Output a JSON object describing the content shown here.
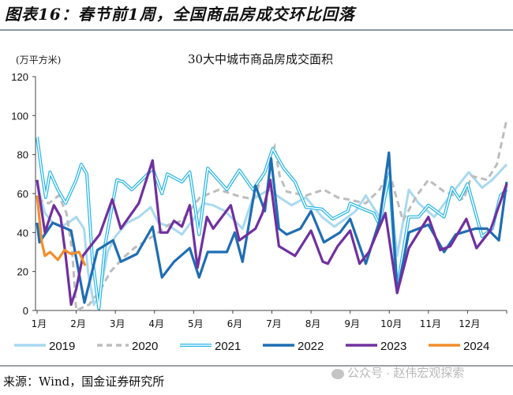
{
  "header": {
    "title": "图表16：春节前1周，全国商品房成交环比回落"
  },
  "footer": {
    "source": "来源：Wind，国金证券研究所",
    "watermark": "公众号 · 赵伟宏观探索"
  },
  "chart_data": {
    "type": "line",
    "title": "30大中城市商品房成交面积",
    "ylabel": "(万平方米)",
    "xlabel": "",
    "ylim": [
      0,
      120
    ],
    "yticks": [
      0,
      20,
      40,
      60,
      80,
      100,
      120
    ],
    "xlim": [
      1,
      13
    ],
    "xticks": [
      {
        "x": 1,
        "label": "1月"
      },
      {
        "x": 2,
        "label": "2月"
      },
      {
        "x": 3,
        "label": "3月"
      },
      {
        "x": 4,
        "label": "4月"
      },
      {
        "x": 5,
        "label": "5月"
      },
      {
        "x": 6,
        "label": "6月"
      },
      {
        "x": 7,
        "label": "7月"
      },
      {
        "x": 8,
        "label": "8月"
      },
      {
        "x": 9,
        "label": "9月"
      },
      {
        "x": 10,
        "label": "10月"
      },
      {
        "x": 11,
        "label": "11月"
      },
      {
        "x": 12,
        "label": "12月"
      }
    ],
    "grid": false,
    "legend": "bottom",
    "series": [
      {
        "name": "2019",
        "color": "#a9d9f0",
        "style": "solid",
        "points": [
          [
            1,
            65
          ],
          [
            1.2,
            50
          ],
          [
            1.4,
            45
          ],
          [
            1.6,
            43
          ],
          [
            1.8,
            45
          ],
          [
            2,
            48
          ],
          [
            2.2,
            42
          ],
          [
            2.3,
            20
          ],
          [
            2.45,
            3
          ],
          [
            2.6,
            8
          ],
          [
            2.8,
            30
          ],
          [
            3,
            38
          ],
          [
            3.3,
            45
          ],
          [
            3.6,
            48
          ],
          [
            3.9,
            53
          ],
          [
            4.1,
            45
          ],
          [
            4.4,
            43
          ],
          [
            4.7,
            39
          ],
          [
            5.04,
            48
          ],
          [
            5.25,
            55
          ],
          [
            5.5,
            54
          ],
          [
            5.8,
            51
          ],
          [
            6.25,
            42
          ],
          [
            6.5,
            57
          ],
          [
            6.93,
            62
          ],
          [
            7.2,
            58
          ],
          [
            7.5,
            54
          ],
          [
            7.87,
            58
          ],
          [
            8.28,
            48
          ],
          [
            8.6,
            43
          ],
          [
            8.94,
            48
          ],
          [
            9.14,
            51
          ],
          [
            9.4,
            59
          ],
          [
            9.75,
            48
          ],
          [
            10,
            66
          ],
          [
            10.2,
            28
          ],
          [
            10.5,
            62
          ],
          [
            10.75,
            55
          ],
          [
            11.15,
            48
          ],
          [
            11.56,
            59
          ],
          [
            12.03,
            71
          ],
          [
            12.37,
            63
          ],
          [
            12.63,
            67
          ],
          [
            13,
            75
          ]
        ]
      },
      {
        "name": "2020",
        "color": "#bdbdbd",
        "style": "dashed",
        "points": [
          [
            1,
            57
          ],
          [
            1.3,
            55
          ],
          [
            1.55,
            59
          ],
          [
            1.75,
            50
          ],
          [
            1.9,
            30
          ],
          [
            2,
            0
          ],
          [
            2.33,
            3
          ],
          [
            2.6,
            10
          ],
          [
            2.88,
            20
          ],
          [
            3.2,
            27
          ],
          [
            3.48,
            32
          ],
          [
            4.03,
            39
          ],
          [
            4.36,
            44
          ],
          [
            4.7,
            46
          ],
          [
            5.16,
            58
          ],
          [
            5.65,
            62
          ],
          [
            6.1,
            59
          ],
          [
            6.52,
            57
          ],
          [
            7.07,
            84
          ],
          [
            7.2,
            69
          ],
          [
            7.38,
            61
          ],
          [
            7.87,
            59
          ],
          [
            8.33,
            62
          ],
          [
            8.68,
            58
          ],
          [
            8.94,
            57
          ],
          [
            9.4,
            55
          ],
          [
            9.75,
            62
          ],
          [
            10,
            71
          ],
          [
            10.35,
            46
          ],
          [
            10.7,
            59
          ],
          [
            11,
            67
          ],
          [
            11.4,
            61
          ],
          [
            11.9,
            57
          ],
          [
            12.1,
            69
          ],
          [
            12.5,
            67
          ],
          [
            12.75,
            75
          ],
          [
            13,
            98
          ]
        ]
      },
      {
        "name": "2021",
        "color": "#29b6e8",
        "style": "double",
        "points": [
          [
            1,
            89
          ],
          [
            1.12,
            71
          ],
          [
            1.22,
            58
          ],
          [
            1.33,
            71
          ],
          [
            1.53,
            62
          ],
          [
            1.73,
            55
          ],
          [
            2,
            67
          ],
          [
            2.13,
            75
          ],
          [
            2.27,
            70
          ],
          [
            2.41,
            27
          ],
          [
            2.58,
            1
          ],
          [
            2.74,
            34
          ],
          [
            3.04,
            67
          ],
          [
            3.2,
            66
          ],
          [
            3.42,
            62
          ],
          [
            3.83,
            70
          ],
          [
            3.95,
            73
          ],
          [
            4.19,
            60
          ],
          [
            4.33,
            70
          ],
          [
            4.7,
            66
          ],
          [
            4.9,
            71
          ],
          [
            5.14,
            39
          ],
          [
            5.36,
            73
          ],
          [
            5.85,
            62
          ],
          [
            6.17,
            72
          ],
          [
            6.52,
            62
          ],
          [
            6.82,
            71
          ],
          [
            7.02,
            83
          ],
          [
            7.3,
            73
          ],
          [
            7.59,
            66
          ],
          [
            7.87,
            53
          ],
          [
            8.28,
            52
          ],
          [
            8.55,
            47
          ],
          [
            8.94,
            51
          ],
          [
            9.0,
            55
          ],
          [
            9.34,
            52
          ],
          [
            9.6,
            50
          ],
          [
            9.75,
            44
          ],
          [
            10,
            70
          ],
          [
            10.2,
            11
          ],
          [
            10.5,
            48
          ],
          [
            10.75,
            48
          ],
          [
            11,
            54
          ],
          [
            11.4,
            48
          ],
          [
            11.6,
            63
          ],
          [
            11.8,
            57
          ],
          [
            12,
            65
          ],
          [
            12.37,
            38
          ],
          [
            12.63,
            42
          ],
          [
            12.84,
            59
          ],
          [
            13,
            62
          ]
        ]
      },
      {
        "name": "2022",
        "color": "#1f6db3",
        "style": "solid",
        "points": [
          [
            1,
            45
          ],
          [
            1.06,
            35
          ],
          [
            1.4,
            45
          ],
          [
            1.87,
            41
          ],
          [
            2.21,
            4
          ],
          [
            2.54,
            31
          ],
          [
            2.94,
            36
          ],
          [
            3.14,
            25
          ],
          [
            3.55,
            29
          ],
          [
            3.95,
            43
          ],
          [
            4.19,
            17
          ],
          [
            4.5,
            25
          ],
          [
            4.9,
            32
          ],
          [
            5.14,
            17
          ],
          [
            5.36,
            30
          ],
          [
            5.85,
            30
          ],
          [
            6.05,
            40
          ],
          [
            6.25,
            25
          ],
          [
            6.58,
            64
          ],
          [
            6.82,
            51
          ],
          [
            6.98,
            78
          ],
          [
            7.18,
            42
          ],
          [
            7.38,
            39
          ],
          [
            7.73,
            42
          ],
          [
            8,
            51
          ],
          [
            8.33,
            35
          ],
          [
            8.74,
            40
          ],
          [
            9,
            47
          ],
          [
            9.4,
            24
          ],
          [
            9.75,
            46
          ],
          [
            9.99,
            81
          ],
          [
            10.2,
            9
          ],
          [
            10.5,
            40
          ],
          [
            11,
            44
          ],
          [
            11.4,
            30
          ],
          [
            11.7,
            39
          ],
          [
            12.2,
            42
          ],
          [
            12.5,
            42
          ],
          [
            12.8,
            36
          ],
          [
            13,
            66
          ]
        ]
      },
      {
        "name": "2023",
        "color": "#7030a0",
        "style": "solid",
        "points": [
          [
            1,
            67
          ],
          [
            1.2,
            40
          ],
          [
            1.43,
            54
          ],
          [
            1.6,
            48
          ],
          [
            1.73,
            28
          ],
          [
            1.87,
            3
          ],
          [
            2,
            11
          ],
          [
            2.17,
            28
          ],
          [
            2.6,
            39
          ],
          [
            2.92,
            57
          ],
          [
            3.14,
            42
          ],
          [
            3.6,
            55
          ],
          [
            3.95,
            77
          ],
          [
            4.15,
            40
          ],
          [
            4.33,
            40
          ],
          [
            4.5,
            46
          ],
          [
            4.7,
            43
          ],
          [
            4.9,
            54
          ],
          [
            5.1,
            22
          ],
          [
            5.34,
            48
          ],
          [
            5.5,
            42
          ],
          [
            5.95,
            54
          ],
          [
            6.17,
            36
          ],
          [
            6.58,
            42
          ],
          [
            6.76,
            50
          ],
          [
            6.96,
            67
          ],
          [
            7.18,
            33
          ],
          [
            7.59,
            28
          ],
          [
            8,
            41
          ],
          [
            8.3,
            25
          ],
          [
            8.43,
            24
          ],
          [
            8.68,
            33
          ],
          [
            9,
            41
          ],
          [
            9.24,
            24
          ],
          [
            9.48,
            30
          ],
          [
            9.9,
            50
          ],
          [
            10.2,
            9
          ],
          [
            10.5,
            32
          ],
          [
            11,
            48
          ],
          [
            11.3,
            31
          ],
          [
            11.56,
            33
          ],
          [
            11.97,
            47
          ],
          [
            12.23,
            32
          ],
          [
            12.58,
            41
          ],
          [
            13,
            65
          ]
        ]
      },
      {
        "name": "2024",
        "color": "#f28e2b",
        "style": "solid",
        "points": [
          [
            1,
            59
          ],
          [
            1.12,
            35
          ],
          [
            1.2,
            28
          ],
          [
            1.33,
            30
          ],
          [
            1.53,
            26
          ],
          [
            1.7,
            31
          ],
          [
            1.87,
            29
          ],
          [
            2.07,
            30
          ],
          [
            2.23,
            23
          ]
        ]
      }
    ]
  }
}
